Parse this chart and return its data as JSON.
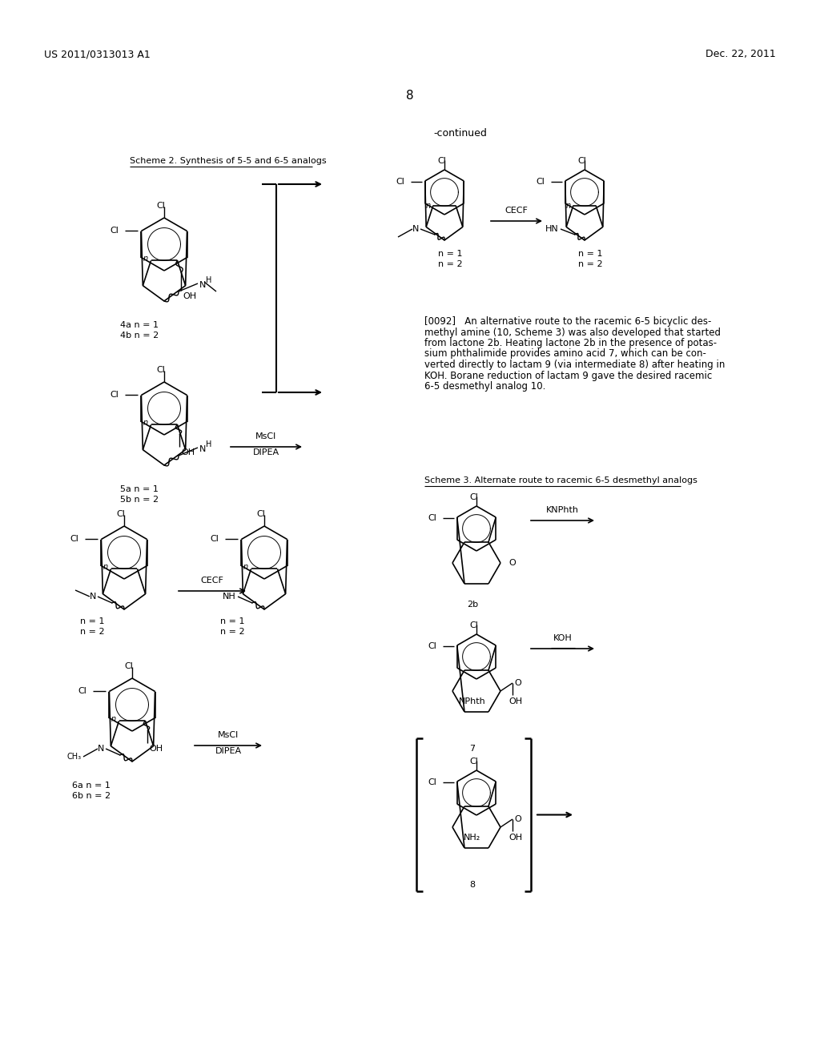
{
  "page_number": "8",
  "header_left": "US 2011/0313013 A1",
  "header_right": "Dec. 22, 2011",
  "continued_label": "-continued",
  "scheme2_title": "Scheme 2. Synthesis of 5-5 and 6-5 analogs",
  "scheme3_title": "Scheme 3. Alternate route to racemic 6-5 desmethyl analogs",
  "paragraph_0092": "[0092]   An alternative route to the racemic 6-5 bicyclic des-methyl amine (10, Scheme 3) was also developed that started from lactone 2b. Heating lactone 2b in the presence of potas-sium phthalimide provides amino acid 7, which can be con-verted directly to lactam 9 (via intermediate 8) after heating in KOH. Borane reduction of lactam 9 gave the desired racemic 6-5 desmethyl analog 10.",
  "bg_color": "#ffffff",
  "text_color": "#000000",
  "fig_width": 10.24,
  "fig_height": 13.2,
  "dpi": 100
}
